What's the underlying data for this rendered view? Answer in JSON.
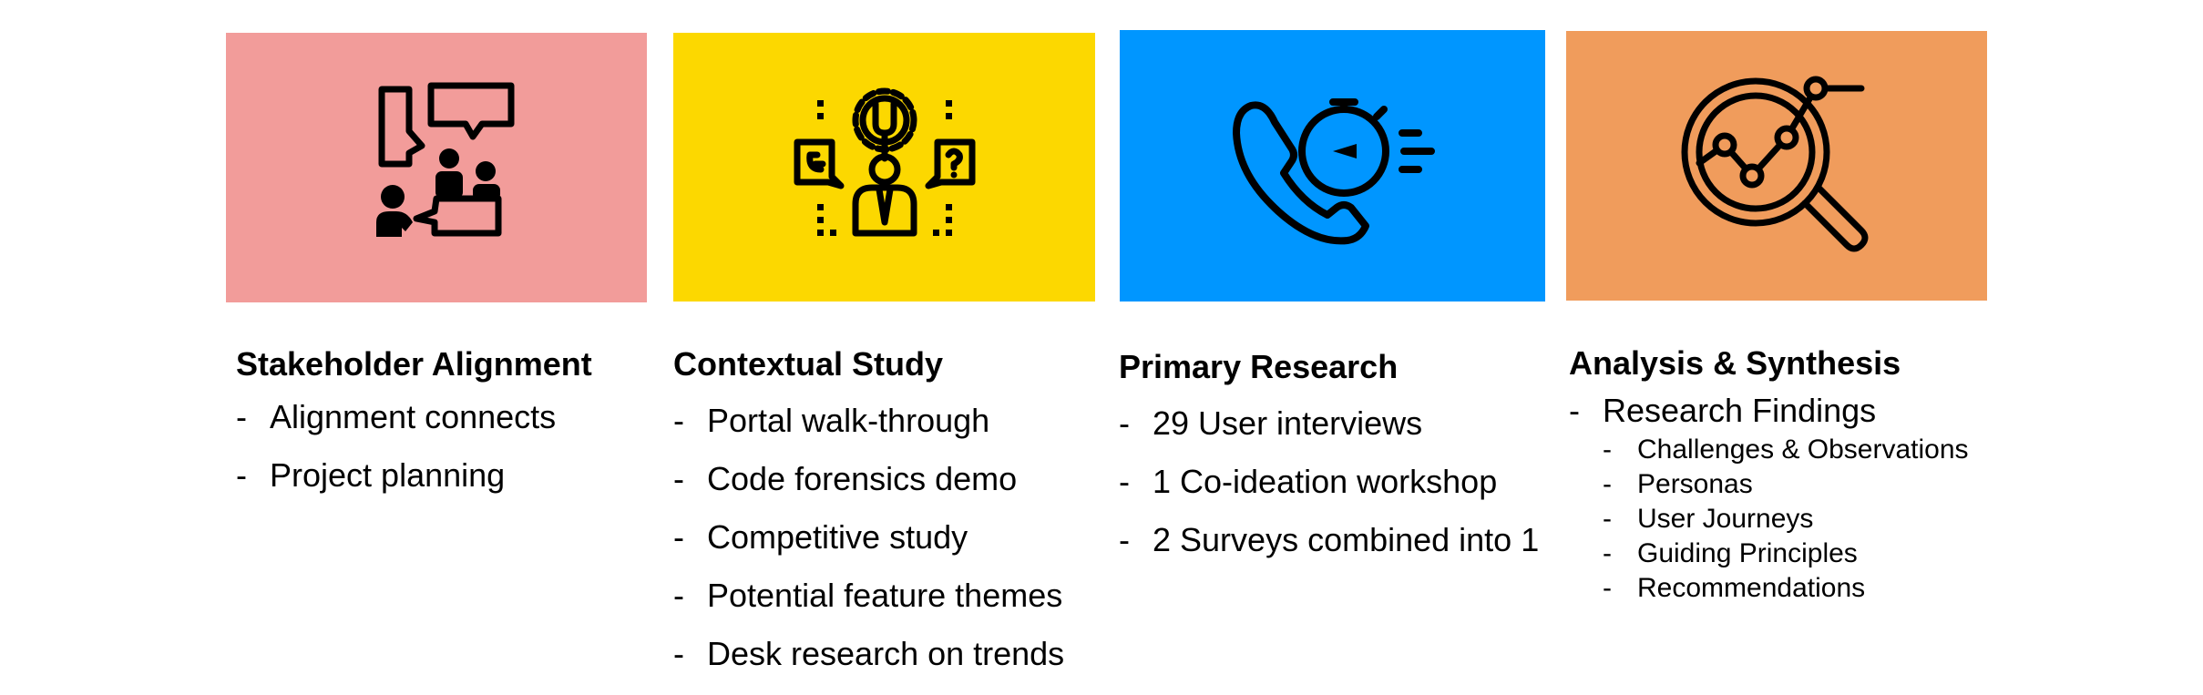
{
  "colors": {
    "stakeholder_tile": "#F29C9A",
    "contextual_tile": "#FCD800",
    "primary_tile": "#0096FF",
    "analysis_tile": "#F09C5C",
    "icon": "#000000"
  },
  "icons": [
    "meeting-discussion-icon",
    "engineer-questions-icon",
    "phone-stopwatch-icon",
    "magnifier-chart-icon"
  ],
  "columns": [
    {
      "title": "Stakeholder Alignment",
      "items": [
        "Alignment connects",
        "Project planning"
      ]
    },
    {
      "title": "Contextual Study",
      "items": [
        "Portal walk-through",
        "Code forensics demo",
        "Competitive study",
        "Potential feature themes",
        "Desk research on trends"
      ]
    },
    {
      "title": "Primary Research",
      "items": [
        "29 User interviews",
        "1 Co-ideation workshop",
        "2 Surveys combined into 1"
      ]
    },
    {
      "title": "Analysis & Synthesis",
      "items": [
        "Research Findings"
      ],
      "subitems": [
        "Challenges & Observations",
        "Personas",
        "User Journeys",
        "Guiding Principles",
        "Recommendations"
      ]
    }
  ]
}
